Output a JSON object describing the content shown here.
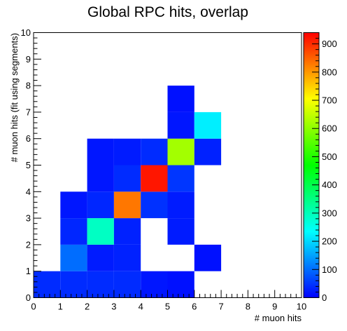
{
  "chart_data": {
    "type": "heatmap",
    "title": "Global RPC hits, overlap",
    "xlabel": "# muon hits",
    "ylabel": "# muon hits (fit using segments)",
    "xlim": [
      0,
      10
    ],
    "ylim": [
      0,
      10
    ],
    "x_ticks": [
      "0",
      "1",
      "2",
      "3",
      "4",
      "5",
      "6",
      "7",
      "8",
      "9",
      "10"
    ],
    "y_ticks": [
      "0",
      "1",
      "2",
      "3",
      "4",
      "5",
      "6",
      "7",
      "8",
      "9",
      "10"
    ],
    "zlim": [
      0,
      940
    ],
    "z_ticks": [
      "0",
      "100",
      "200",
      "300",
      "400",
      "500",
      "600",
      "700",
      "800",
      "900"
    ],
    "cells": [
      {
        "x": 0,
        "y": 0,
        "value": 40
      },
      {
        "x": 1,
        "y": 0,
        "value": 40
      },
      {
        "x": 2,
        "y": 0,
        "value": 40
      },
      {
        "x": 3,
        "y": 0,
        "value": 40
      },
      {
        "x": 4,
        "y": 0,
        "value": 20
      },
      {
        "x": 5,
        "y": 0,
        "value": 15
      },
      {
        "x": 1,
        "y": 1,
        "value": 100
      },
      {
        "x": 2,
        "y": 1,
        "value": 25
      },
      {
        "x": 3,
        "y": 1,
        "value": 30
      },
      {
        "x": 6,
        "y": 1,
        "value": 15
      },
      {
        "x": 1,
        "y": 2,
        "value": 35
      },
      {
        "x": 2,
        "y": 2,
        "value": 290
      },
      {
        "x": 3,
        "y": 2,
        "value": 30
      },
      {
        "x": 5,
        "y": 2,
        "value": 25
      },
      {
        "x": 1,
        "y": 3,
        "value": 20
      },
      {
        "x": 2,
        "y": 3,
        "value": 35
      },
      {
        "x": 3,
        "y": 3,
        "value": 830
      },
      {
        "x": 4,
        "y": 3,
        "value": 45
      },
      {
        "x": 5,
        "y": 3,
        "value": 25
      },
      {
        "x": 2,
        "y": 4,
        "value": 20
      },
      {
        "x": 3,
        "y": 4,
        "value": 40
      },
      {
        "x": 4,
        "y": 4,
        "value": 920
      },
      {
        "x": 5,
        "y": 4,
        "value": 50
      },
      {
        "x": 2,
        "y": 5,
        "value": 20
      },
      {
        "x": 3,
        "y": 5,
        "value": 25
      },
      {
        "x": 4,
        "y": 5,
        "value": 40
      },
      {
        "x": 5,
        "y": 5,
        "value": 620
      },
      {
        "x": 6,
        "y": 5,
        "value": 30
      },
      {
        "x": 5,
        "y": 6,
        "value": 20
      },
      {
        "x": 6,
        "y": 6,
        "value": 220
      },
      {
        "x": 5,
        "y": 7,
        "value": 15
      }
    ]
  }
}
